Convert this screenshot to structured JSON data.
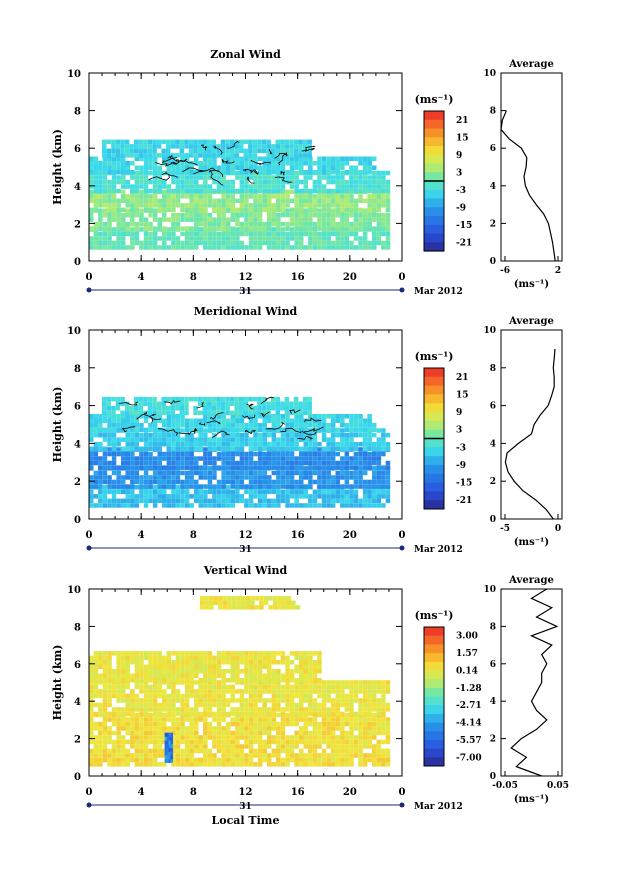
{
  "chart_data": [
    {
      "type": "heatmap",
      "title": "Zonal Wind",
      "ylabel": "Height (km)",
      "xlabel": "",
      "xlim": [
        0,
        24
      ],
      "ylim": [
        0,
        10
      ],
      "x_ticks": [
        "0",
        "4",
        "8",
        "12",
        "16",
        "20",
        "0"
      ],
      "y_ticks": [
        "0",
        "2",
        "4",
        "6",
        "8",
        "10"
      ],
      "date_day": "31",
      "date_month": "Mar 2012",
      "colorbar": {
        "unit": "(ms⁻¹)",
        "ticks": [
          "21",
          "15",
          "9",
          "3",
          "-3",
          "-9",
          "-15",
          "-21"
        ],
        "min": -24,
        "max": 24
      },
      "layers": [
        {
          "y0": 0.6,
          "y1": 1.6,
          "value": 0,
          "x0": 0,
          "x1": 23
        },
        {
          "y0": 1.6,
          "y1": 2.6,
          "value": 2,
          "x0": 0,
          "x1": 23
        },
        {
          "y0": 2.6,
          "y1": 3.6,
          "value": 3,
          "x0": 0,
          "x1": 23
        },
        {
          "y0": 3.6,
          "y1": 4.6,
          "value": -2,
          "x0": 0,
          "x1": 23
        },
        {
          "y0": 4.6,
          "y1": 5.5,
          "value": -4,
          "x0": 0,
          "x1": 22
        },
        {
          "y0": 5.5,
          "y1": 6.4,
          "value": -4,
          "x0": 1,
          "x1": 17
        }
      ],
      "avg": {
        "title": "Average",
        "xlim": [
          -6,
          3
        ],
        "x_ticks": [
          "-6",
          "2"
        ],
        "xlabel": "(ms⁻¹)",
        "heights": [
          0,
          0.5,
          1,
          1.5,
          2,
          2.5,
          3,
          3.5,
          4,
          4.5,
          5,
          5.5,
          6,
          6.5,
          7,
          7.5,
          8
        ],
        "values": [
          2,
          1.8,
          1.6,
          1.3,
          1,
          0.3,
          -0.8,
          -1.8,
          -2.4,
          -2.6,
          -2.3,
          -2.2,
          -3,
          -4.8,
          -6,
          -5.8,
          -5.2
        ]
      }
    },
    {
      "type": "heatmap",
      "title": "Meridional Wind",
      "ylabel": "Height (km)",
      "xlabel": "",
      "xlim": [
        0,
        24
      ],
      "ylim": [
        0,
        10
      ],
      "x_ticks": [
        "0",
        "4",
        "8",
        "12",
        "16",
        "20",
        "0"
      ],
      "y_ticks": [
        "0",
        "2",
        "4",
        "6",
        "8",
        "10"
      ],
      "date_day": "31",
      "date_month": "Mar 2012",
      "colorbar": {
        "unit": "(ms⁻¹)",
        "ticks": [
          "21",
          "15",
          "9",
          "3",
          "-3",
          "-9",
          "-15",
          "-21"
        ],
        "min": -24,
        "max": 24
      },
      "layers": [
        {
          "y0": 0.6,
          "y1": 1.6,
          "value": -6,
          "x0": 0,
          "x1": 23
        },
        {
          "y0": 1.6,
          "y1": 2.6,
          "value": -10,
          "x0": 0,
          "x1": 23
        },
        {
          "y0": 2.6,
          "y1": 3.6,
          "value": -11,
          "x0": 0,
          "x1": 23
        },
        {
          "y0": 3.6,
          "y1": 4.6,
          "value": -5,
          "x0": 0,
          "x1": 23
        },
        {
          "y0": 4.6,
          "y1": 5.5,
          "value": -4,
          "x0": 0,
          "x1": 22
        },
        {
          "y0": 5.5,
          "y1": 6.4,
          "value": -3,
          "x0": 1,
          "x1": 17
        }
      ],
      "avg": {
        "title": "Average",
        "xlim": [
          -6,
          1
        ],
        "x_ticks": [
          "-5",
          "0"
        ],
        "xlabel": "(ms⁻¹)",
        "heights": [
          0,
          0.5,
          1,
          1.5,
          2,
          2.5,
          3,
          3.5,
          4,
          4.5,
          5,
          5.5,
          6,
          6.5,
          7,
          7.5,
          8,
          8.5,
          9
        ],
        "values": [
          0,
          -0.8,
          -2,
          -3.5,
          -4.5,
          -5.2,
          -5.5,
          -5.3,
          -4,
          -2.5,
          -2.2,
          -1.5,
          -0.6,
          -0.2,
          0.1,
          0.1,
          0,
          0.1,
          0.2
        ]
      }
    },
    {
      "type": "heatmap",
      "title": "Vertical Wind",
      "ylabel": "Height (km)",
      "xlabel": "Local Time",
      "xlim": [
        0,
        24
      ],
      "ylim": [
        0,
        10
      ],
      "x_ticks": [
        "0",
        "4",
        "8",
        "12",
        "16",
        "20",
        "0"
      ],
      "y_ticks": [
        "0",
        "2",
        "4",
        "6",
        "8",
        "10"
      ],
      "date_day": "31",
      "date_month": "Mar 2012",
      "colorbar": {
        "unit": "(ms⁻¹)",
        "ticks": [
          "3.00",
          "1.57",
          "0.14",
          "-1.28",
          "-2.71",
          "-4.14",
          "-5.57",
          "-7.00"
        ],
        "min": -7.7,
        "max": 3.7
      },
      "layers": [
        {
          "y0": 0.5,
          "y1": 3.2,
          "value": 0.4,
          "x0": 0,
          "x1": 23
        },
        {
          "y0": 3.2,
          "y1": 5.0,
          "value": 0.2,
          "x0": 0,
          "x1": 23
        },
        {
          "y0": 5.0,
          "y1": 6.6,
          "value": 0.2,
          "x0": 0,
          "x1": 17.5
        },
        {
          "y0": 8.9,
          "y1": 9.5,
          "value": 0.2,
          "x0": 8.5,
          "x1": 16
        }
      ],
      "spot": {
        "x0": 5.8,
        "x1": 6.3,
        "y0": 0.7,
        "y1": 2.2,
        "value": -6.5
      },
      "avg": {
        "title": "Average",
        "xlim": [
          -0.06,
          0.06
        ],
        "x_ticks": [
          "-0.05",
          "0.05"
        ],
        "xlabel": "(ms⁻¹)",
        "heights": [
          0,
          0.5,
          1,
          1.5,
          2,
          2.5,
          3,
          3.5,
          4,
          4.5,
          5,
          5.5,
          6,
          6.5,
          7,
          7.5,
          8,
          8.5,
          9,
          9.5,
          10
        ],
        "values": [
          0.02,
          -0.03,
          -0.01,
          -0.04,
          -0.02,
          0.01,
          0.03,
          0.01,
          0.0,
          0.01,
          0.02,
          0.02,
          0.03,
          0.02,
          0.04,
          0.0,
          0.05,
          0.01,
          0.04,
          0.0,
          0.03
        ]
      }
    }
  ]
}
